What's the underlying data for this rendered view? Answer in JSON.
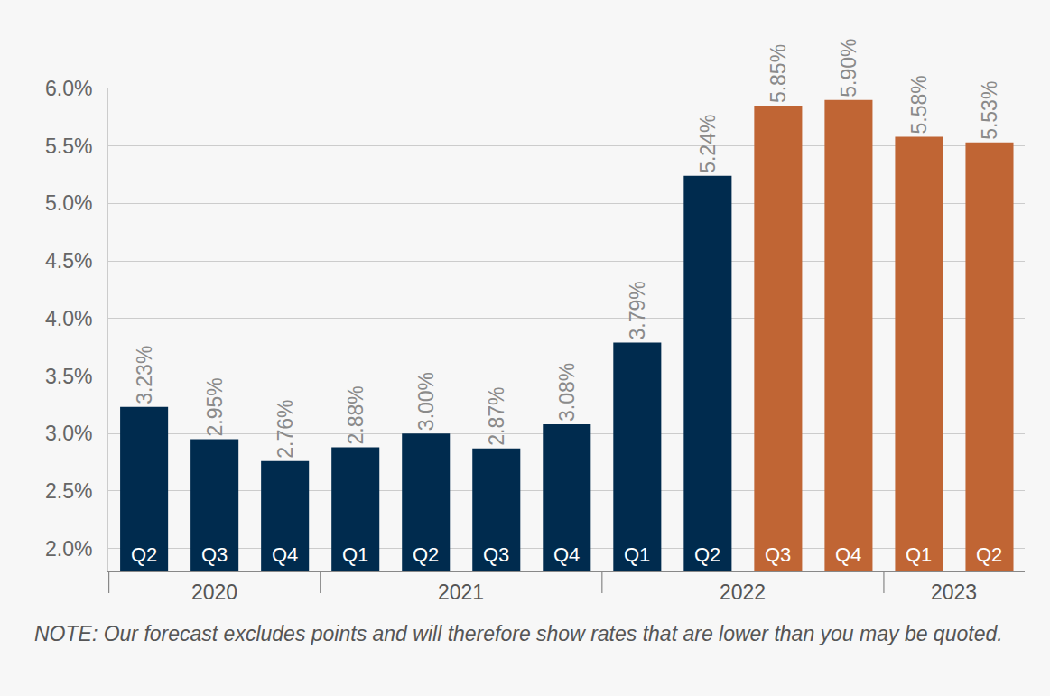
{
  "chart_data": {
    "type": "bar",
    "categories": [
      "Q2",
      "Q3",
      "Q4",
      "Q1",
      "Q2",
      "Q3",
      "Q4",
      "Q1",
      "Q2",
      "Q3",
      "Q4",
      "Q1",
      "Q2"
    ],
    "years": [
      "2020",
      "2020",
      "2020",
      "2021",
      "2021",
      "2021",
      "2021",
      "2022",
      "2022",
      "2022",
      "2022",
      "2023",
      "2023"
    ],
    "values": [
      3.23,
      2.95,
      2.76,
      2.88,
      3.0,
      2.87,
      3.08,
      3.79,
      5.24,
      5.85,
      5.9,
      5.58,
      5.53
    ],
    "value_labels": [
      "3.23%",
      "2.95%",
      "2.76%",
      "2.88%",
      "3.00%",
      "2.87%",
      "3.08%",
      "3.79%",
      "5.24%",
      "5.85%",
      "5.90%",
      "5.58%",
      "5.53%"
    ],
    "colors": [
      "#002b4e",
      "#002b4e",
      "#002b4e",
      "#002b4e",
      "#002b4e",
      "#002b4e",
      "#002b4e",
      "#002b4e",
      "#002b4e",
      "#c06534",
      "#c06534",
      "#c06534",
      "#c06534"
    ],
    "ylim": [
      1.8,
      6.0
    ],
    "yticks": [
      {
        "value": 2.0,
        "label": "2.0%"
      },
      {
        "value": 2.5,
        "label": "2.5%"
      },
      {
        "value": 3.0,
        "label": "3.0%"
      },
      {
        "value": 3.5,
        "label": "3.5%"
      },
      {
        "value": 4.0,
        "label": "4.0%"
      },
      {
        "value": 4.5,
        "label": "4.5%"
      },
      {
        "value": 5.0,
        "label": "5.0%"
      },
      {
        "value": 5.5,
        "label": "5.5%"
      },
      {
        "value": 6.0,
        "label": "6.0%"
      }
    ],
    "grid": true,
    "data_labels": true,
    "note": "NOTE: Our forecast excludes points and will therefore show rates that are lower than you may be quoted."
  }
}
